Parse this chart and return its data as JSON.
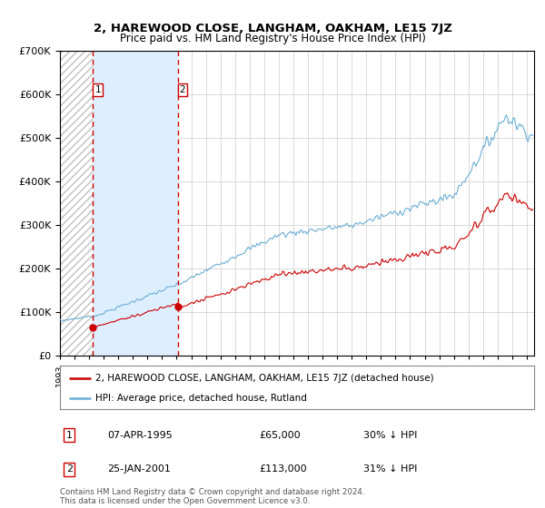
{
  "title": "2, HAREWOOD CLOSE, LANGHAM, OAKHAM, LE15 7JZ",
  "subtitle": "Price paid vs. HM Land Registry's House Price Index (HPI)",
  "legend_line1": "2, HAREWOOD CLOSE, LANGHAM, OAKHAM, LE15 7JZ (detached house)",
  "legend_line2": "HPI: Average price, detached house, Rutland",
  "t1_date": "07-APR-1995",
  "t1_price": 65000,
  "t1_pct": "30% ↓ HPI",
  "t2_date": "25-JAN-2001",
  "t2_price": 113000,
  "t2_pct": "31% ↓ HPI",
  "footnote": "Contains HM Land Registry data © Crown copyright and database right 2024.\nThis data is licensed under the Open Government Licence v3.0.",
  "hpi_color": "#6baed6",
  "price_color": "#cc0000",
  "ylim": [
    0,
    700000
  ],
  "yticks": [
    0,
    100000,
    200000,
    300000,
    400000,
    500000,
    600000,
    700000
  ],
  "xlim_start": 1993.0,
  "xlim_end": 2025.5,
  "t1_year": 1995.267,
  "t2_year": 2001.068
}
